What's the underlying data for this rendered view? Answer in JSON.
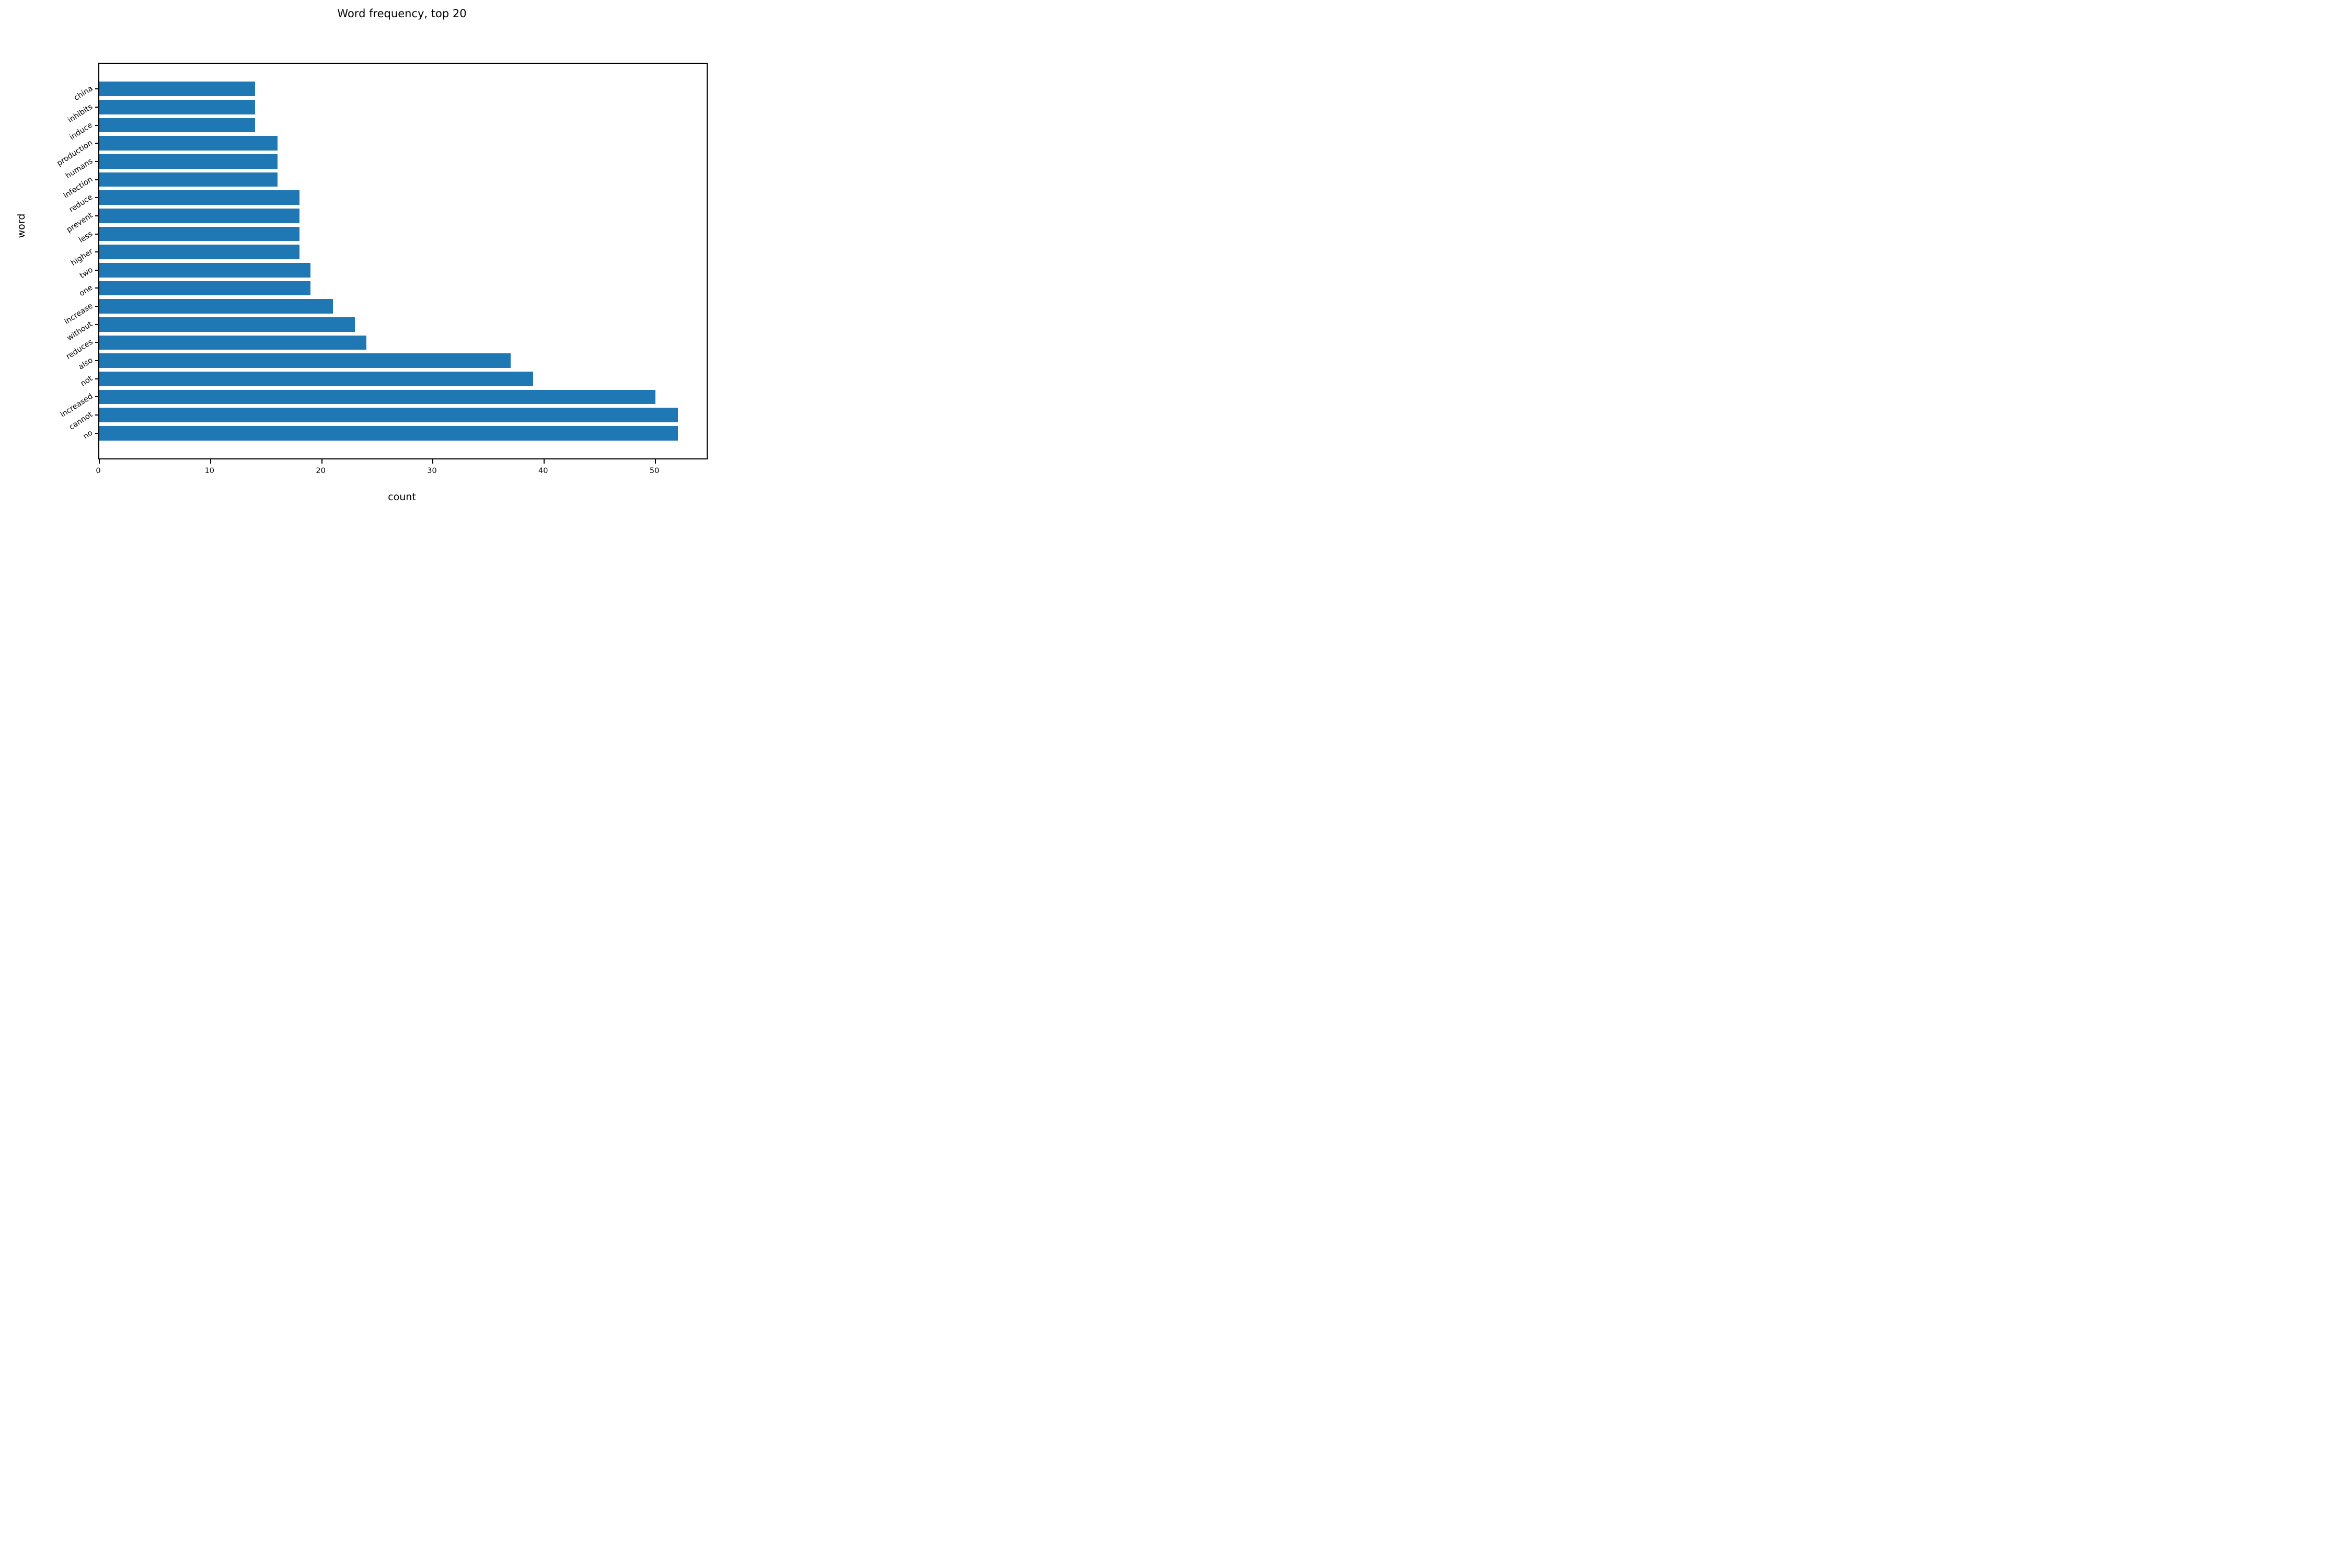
{
  "chart_data": {
    "type": "bar",
    "orientation": "horizontal",
    "title": "Word frequency, top 20",
    "xlabel": "count",
    "ylabel": "word",
    "categories": [
      "china",
      "inhibits",
      "induce",
      "production",
      "humans",
      "infection",
      "reduce",
      "prevent",
      "less",
      "higher",
      "two",
      "one",
      "increase",
      "without",
      "reduces",
      "also",
      "not",
      "increased",
      "cannot",
      "no"
    ],
    "values": [
      14,
      14,
      14,
      16,
      16,
      16,
      18,
      18,
      18,
      18,
      19,
      19,
      21,
      23,
      24,
      37,
      39,
      50,
      52,
      52
    ],
    "x_ticks": [
      0,
      10,
      20,
      30,
      40,
      50
    ],
    "xlim": [
      0,
      54.6
    ],
    "grid": false,
    "legend": null,
    "bar_color": "#1f77b4",
    "y_tick_label_rotation_deg": 33
  }
}
